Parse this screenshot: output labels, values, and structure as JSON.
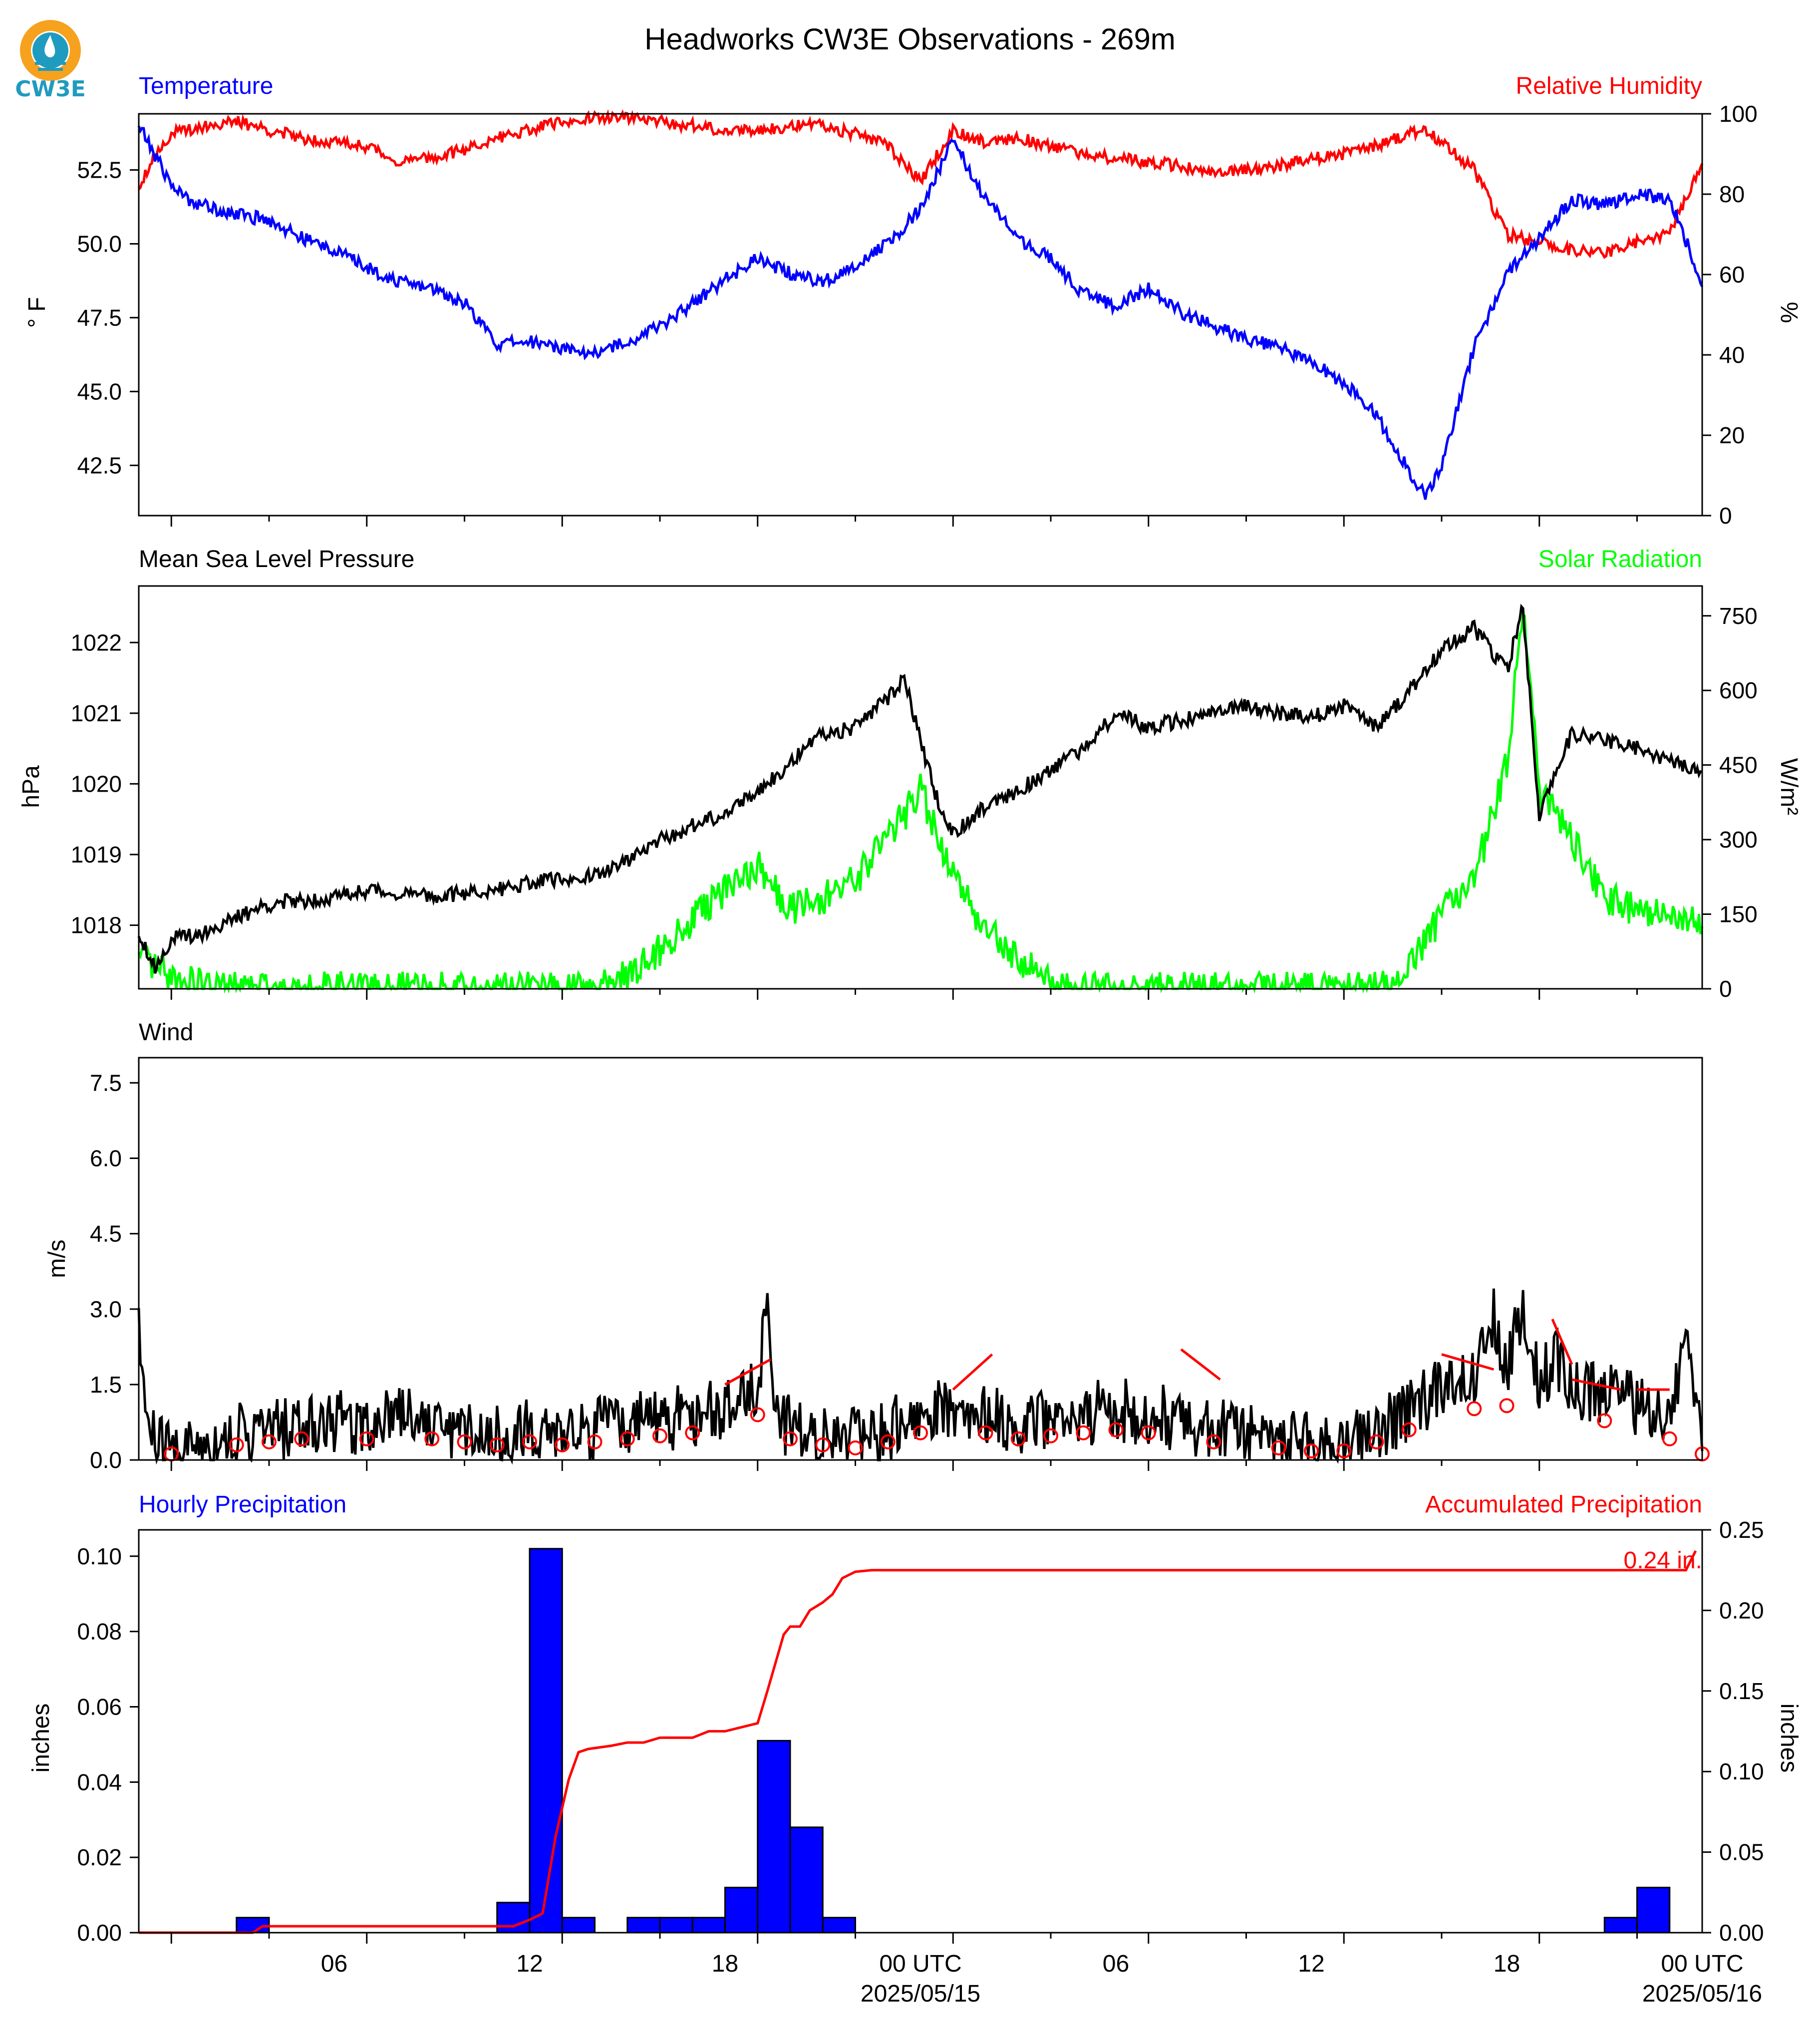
{
  "title": "Headworks CW3E Observations - 269m",
  "logo": {
    "text": "CW3E",
    "icon": "cw3e-logo-icon",
    "colors": {
      "ring": "#f6a21e",
      "drop": "#1f9bbf",
      "text": "#1f9bbf"
    }
  },
  "colors": {
    "temperature": "#0000ff",
    "humidity": "#ff0000",
    "pressure": "#000000",
    "solar": "#00ff00",
    "wind": "#000000",
    "windbarb": "#ff0000",
    "hourly_precip": "#0000ff",
    "accum_precip": "#ff0000"
  },
  "time_axis": {
    "ticks": [
      "06",
      "12",
      "18",
      "00 UTC",
      "06",
      "12",
      "18",
      "00 UTC"
    ],
    "date_labels": [
      "2025/05/15",
      "2025/05/16"
    ],
    "range_hours": [
      -1,
      47
    ]
  },
  "panels": {
    "temp_rh": {
      "left_title": "Temperature",
      "right_title": "Relative Humidity",
      "left_unit": "° F",
      "right_unit": "%"
    },
    "pressure_solar": {
      "left_title": "Mean Sea Level Pressure",
      "right_title": "Solar Radiation",
      "left_unit": "hPa",
      "right_unit": "W/m²"
    },
    "wind": {
      "left_title": "Wind",
      "left_unit": "m/s"
    },
    "precip": {
      "left_title": "Hourly Precipitation",
      "right_title": "Accumulated Precipitation",
      "left_unit": "inches",
      "right_unit": "inches",
      "total_label": "0.24 in."
    }
  },
  "chart_data": [
    {
      "type": "line",
      "series": [
        {
          "name": "Temperature",
          "axis": "left",
          "x": [
            -1,
            -0.5,
            0,
            0.5,
            1,
            2,
            3,
            4,
            5,
            6,
            7,
            8,
            9,
            10,
            11,
            12,
            13,
            14,
            15,
            16,
            17,
            18,
            19,
            20,
            21,
            22,
            23,
            24,
            25,
            26,
            27,
            28,
            29,
            30,
            31,
            32,
            33,
            34,
            35,
            36,
            37,
            38,
            38.5,
            39,
            40,
            41,
            42,
            43,
            44,
            45,
            46,
            47
          ],
          "y": [
            54.0,
            53.0,
            52.0,
            51.5,
            51.3,
            51.0,
            50.8,
            50.2,
            49.8,
            49.2,
            48.7,
            48.5,
            48.0,
            46.6,
            46.7,
            46.5,
            46.3,
            46.7,
            47.2,
            48.0,
            48.8,
            49.5,
            49.0,
            48.7,
            49.3,
            50.0,
            51.2,
            53.5,
            51.5,
            50.2,
            49.5,
            48.3,
            47.9,
            48.5,
            47.7,
            47.2,
            46.8,
            46.5,
            46.0,
            45.3,
            44.2,
            42.3,
            41.5,
            42.5,
            46.5,
            49.0,
            50.2,
            51.5,
            51.3,
            51.7,
            51.5,
            48.7
          ]
        },
        {
          "name": "Relative Humidity",
          "axis": "right",
          "x": [
            -1,
            -0.5,
            0,
            1,
            2,
            3,
            4,
            5,
            6,
            7,
            8,
            9,
            10,
            11,
            12,
            13,
            14,
            15,
            16,
            17,
            18,
            19,
            20,
            21,
            22,
            23,
            24,
            25,
            26,
            27,
            28,
            29,
            30,
            31,
            32,
            33,
            34,
            35,
            36,
            37,
            38,
            38.5,
            39,
            40,
            41,
            42,
            43,
            44,
            45,
            46,
            47
          ],
          "y": [
            82,
            90,
            95,
            97,
            98,
            96,
            94,
            93,
            92,
            88,
            89,
            91,
            94,
            96,
            98,
            99,
            99,
            98,
            97,
            96,
            96,
            97,
            97,
            95,
            92,
            83,
            96,
            93,
            94,
            92,
            90,
            89,
            88,
            87,
            85,
            86,
            87,
            89,
            90,
            92,
            95,
            96,
            93,
            86,
            70,
            68,
            66,
            65,
            68,
            70,
            88
          ]
        }
      ],
      "left_ylim": [
        40.8,
        54.4
      ],
      "right_ylim": [
        0,
        100
      ],
      "left_ticks": [
        "42.5",
        "45.0",
        "47.5",
        "50.0",
        "52.5"
      ],
      "right_ticks": [
        "0",
        "20",
        "40",
        "60",
        "80",
        "100"
      ]
    },
    {
      "type": "line",
      "series": [
        {
          "name": "Mean Sea Level Pressure",
          "axis": "left",
          "x": [
            -1,
            -0.5,
            0,
            1,
            2,
            3,
            4,
            5,
            6,
            7,
            8,
            9,
            10,
            11,
            12,
            13,
            14,
            15,
            16,
            17,
            18,
            19,
            20,
            21,
            22,
            22.5,
            23,
            23.5,
            24,
            25,
            26,
            27,
            28,
            29,
            30,
            31,
            32,
            33,
            34,
            35,
            36,
            37,
            38,
            39,
            40,
            41,
            41.5,
            42,
            42.5,
            43,
            44,
            45,
            46,
            47
          ],
          "y": [
            1017.9,
            1017.4,
            1017.8,
            1017.9,
            1018.1,
            1018.3,
            1018.35,
            1018.4,
            1018.5,
            1018.45,
            1018.4,
            1018.45,
            1018.5,
            1018.6,
            1018.65,
            1018.7,
            1018.9,
            1019.2,
            1019.4,
            1019.6,
            1019.9,
            1020.3,
            1020.7,
            1020.8,
            1021.2,
            1021.5,
            1020.6,
            1019.8,
            1019.3,
            1019.7,
            1019.9,
            1020.2,
            1020.5,
            1021.0,
            1020.8,
            1020.9,
            1021.0,
            1021.1,
            1021.0,
            1020.95,
            1021.1,
            1020.8,
            1021.3,
            1021.9,
            1022.2,
            1021.6,
            1022.5,
            1019.5,
            1020.2,
            1020.7,
            1020.6,
            1020.5,
            1020.3,
            1020.2
          ]
        },
        {
          "name": "Solar Radiation",
          "axis": "right",
          "x": [
            -1,
            0,
            1,
            2,
            3,
            4,
            5,
            6,
            7,
            8,
            9,
            10,
            11,
            12,
            13,
            14,
            15,
            16,
            17,
            18,
            19,
            20,
            21,
            22,
            23,
            24,
            25,
            26,
            27,
            28,
            29,
            30,
            31,
            32,
            33,
            34,
            35,
            36,
            37,
            37.5,
            38,
            39,
            40,
            41,
            41.5,
            42,
            43,
            44,
            45,
            46,
            47
          ],
          "y": [
            60,
            20,
            5,
            0,
            0,
            0,
            0,
            0,
            0,
            0,
            0,
            0,
            0,
            0,
            0,
            30,
            80,
            140,
            200,
            250,
            160,
            180,
            220,
            300,
            400,
            230,
            120,
            60,
            15,
            0,
            0,
            0,
            0,
            0,
            0,
            0,
            0,
            0,
            0,
            10,
            40,
            150,
            220,
            450,
            780,
            400,
            300,
            180,
            160,
            140,
            130
          ]
        }
      ],
      "left_ylim": [
        1017.1,
        1022.8
      ],
      "right_ylim": [
        0,
        810
      ],
      "left_ticks": [
        "1018",
        "1019",
        "1020",
        "1021",
        "1022"
      ],
      "right_ticks": [
        "0",
        "150",
        "300",
        "450",
        "600",
        "750"
      ]
    },
    {
      "type": "line",
      "series": [
        {
          "name": "Wind",
          "x": [
            -1,
            -0.7,
            -0.4,
            0,
            1,
            2,
            3,
            4,
            5,
            6,
            7,
            8,
            9,
            10,
            11,
            12,
            13,
            14,
            15,
            16,
            17,
            18,
            18.3,
            18.6,
            19,
            20,
            21,
            22,
            23,
            24,
            25,
            26,
            27,
            28,
            29,
            30,
            31,
            32,
            33,
            34,
            35,
            36,
            37,
            38,
            39,
            40,
            40.5,
            41,
            41.5,
            42,
            42.5,
            43,
            44,
            45,
            46,
            46.5,
            47
          ],
          "y": [
            2.4,
            0.6,
            0.3,
            0.2,
            0.3,
            0.5,
            0.6,
            0.7,
            0.8,
            0.7,
            1.1,
            0.7,
            0.6,
            0.5,
            0.6,
            0.5,
            0.6,
            0.7,
            0.8,
            0.9,
            1.0,
            1.5,
            3.0,
            0.8,
            0.7,
            0.5,
            0.4,
            0.6,
            0.9,
            1.1,
            0.9,
            0.7,
            0.8,
            0.9,
            1.0,
            0.9,
            0.8,
            0.6,
            0.5,
            0.4,
            0.3,
            0.3,
            0.6,
            1.0,
            1.4,
            1.7,
            3.0,
            1.8,
            3.0,
            1.6,
            2.0,
            1.5,
            1.3,
            1.1,
            0.7,
            2.2,
            0.2
          ]
        }
      ],
      "barb_hours": [
        0,
        2,
        3,
        4,
        6,
        8,
        9,
        10,
        11,
        12,
        13,
        14,
        15,
        16,
        18,
        19,
        20,
        21,
        22,
        23,
        25,
        26,
        27,
        28,
        29,
        30,
        32,
        34,
        35,
        36,
        37,
        38,
        40,
        41,
        44,
        46,
        47
      ],
      "barb_lines": [
        [
          17,
          1.5,
          18.4,
          2.0
        ],
        [
          24,
          1.4,
          25.2,
          2.1
        ],
        [
          31,
          2.2,
          32.2,
          1.6
        ],
        [
          39,
          2.1,
          40.6,
          1.8
        ],
        [
          42.4,
          2.8,
          43.0,
          1.9
        ],
        [
          43,
          1.6,
          44.5,
          1.4
        ],
        [
          45,
          1.4,
          46,
          1.4
        ]
      ],
      "ylim": [
        0,
        8.0
      ],
      "ticks": [
        "0.0",
        "1.5",
        "3.0",
        "4.5",
        "6.0",
        "7.5"
      ]
    },
    {
      "type": "bar",
      "series": [
        {
          "name": "Hourly Precipitation",
          "axis": "left",
          "hours": [
            3,
            11,
            12,
            13,
            15,
            16,
            17,
            18,
            19,
            20,
            21,
            45,
            46
          ],
          "values": [
            0.004,
            0.008,
            0.102,
            0.004,
            0.004,
            0.004,
            0.004,
            0.012,
            0.051,
            0.028,
            0.004,
            0.004,
            0.012
          ]
        },
        {
          "name": "Accumulated Precipitation",
          "axis": "right",
          "type": "line",
          "x": [
            -1,
            2.5,
            2.8,
            10.5,
            11.0,
            11.4,
            11.8,
            12.2,
            12.5,
            12.8,
            13.5,
            14.0,
            14.5,
            15.0,
            16.0,
            16.5,
            17.0,
            18.0,
            18.3,
            18.8,
            19.0,
            19.3,
            19.6,
            20.0,
            20.3,
            20.6,
            21.0,
            21.5,
            46.5,
            46.8
          ],
          "y": [
            0.0,
            0.0,
            0.004,
            0.004,
            0.008,
            0.012,
            0.06,
            0.095,
            0.112,
            0.114,
            0.116,
            0.118,
            0.118,
            0.121,
            0.121,
            0.125,
            0.125,
            0.13,
            0.15,
            0.185,
            0.19,
            0.19,
            0.2,
            0.205,
            0.21,
            0.22,
            0.224,
            0.225,
            0.225,
            0.237
          ]
        }
      ],
      "left_ylim": [
        0,
        0.107
      ],
      "right_ylim": [
        0,
        0.25
      ],
      "left_ticks": [
        "0.00",
        "0.02",
        "0.04",
        "0.06",
        "0.08",
        "0.10"
      ],
      "right_ticks": [
        "0.00",
        "0.05",
        "0.10",
        "0.15",
        "0.20",
        "0.25"
      ]
    }
  ]
}
